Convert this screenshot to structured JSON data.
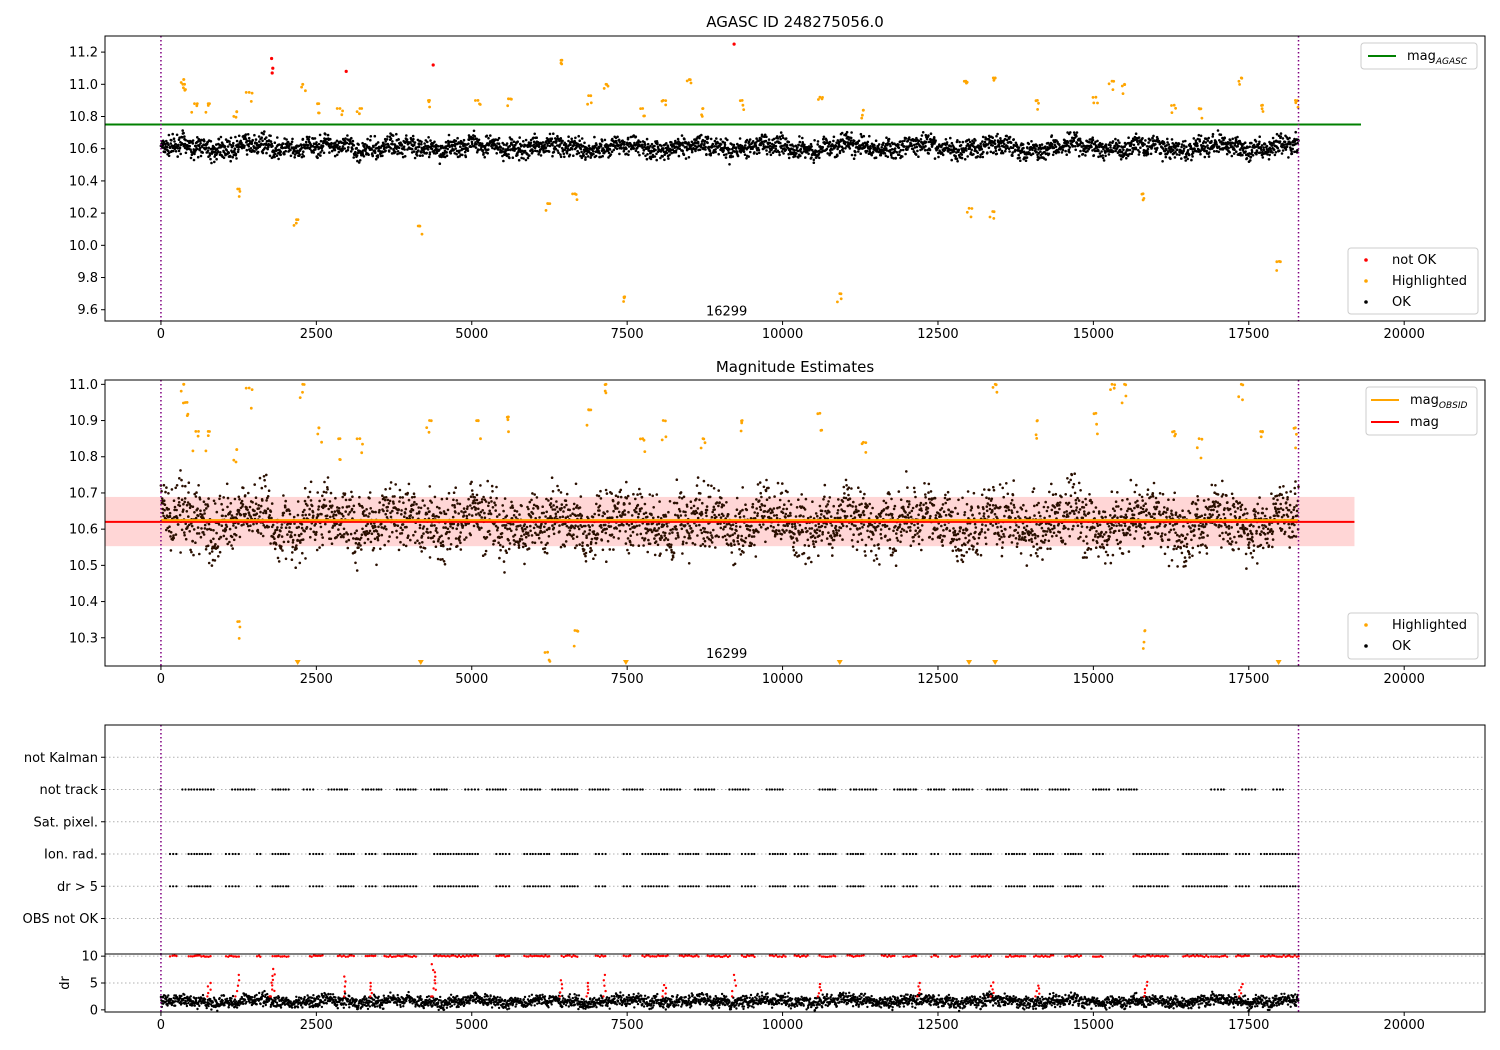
{
  "colors": {
    "ok": "#000000",
    "not_ok": "#ff0000",
    "highlighted": "#ffa500",
    "mag_agasc": "#008000",
    "mag_obsid": "#ffa500",
    "mag": "#ff0000",
    "band": "#ffd6d6",
    "boundary": "#800080",
    "grid": "#b0b0b0"
  },
  "chart_data": [
    {
      "type": "scatter",
      "title": "AGASC ID 248275056.0",
      "xlim": [
        -900,
        21300
      ],
      "ylim": [
        9.53,
        11.3
      ],
      "xticks": [
        0,
        2500,
        5000,
        7500,
        10000,
        12500,
        15000,
        17500,
        20000
      ],
      "yticks": [
        9.6,
        9.8,
        10.0,
        10.2,
        10.4,
        10.6,
        10.8,
        11.0,
        11.2
      ],
      "hline": {
        "name": "mag",
        "subscript": "AGASC",
        "y": 10.75,
        "color": "#008000"
      },
      "vlines": [
        0,
        18300
      ],
      "annotation": {
        "text": "16299",
        "x": 9100,
        "y": 9.59
      },
      "legend_top": [
        {
          "name": "mag",
          "subscript": "AGASC",
          "type": "line",
          "color": "#008000"
        }
      ],
      "legend_bottom": [
        {
          "name": "not OK",
          "color": "#ff0000"
        },
        {
          "name": "Highlighted",
          "color": "#ffa500"
        },
        {
          "name": "OK",
          "color": "#000000"
        }
      ],
      "series": {
        "ok_band": {
          "center": 10.61,
          "spread": 0.05,
          "x_start": 0,
          "x_end": 18300
        },
        "not_ok": [
          [
            1780,
            11.16
          ],
          [
            1800,
            11.1
          ],
          [
            1790,
            11.07
          ],
          [
            2980,
            11.08
          ],
          [
            4380,
            11.12
          ],
          [
            9220,
            11.25
          ]
        ],
        "highlighted": [
          [
            370,
            11.03
          ],
          [
            380,
            11.0
          ],
          [
            540,
            10.88
          ],
          [
            760,
            10.88
          ],
          [
            1220,
            10.83
          ],
          [
            1260,
            10.35
          ],
          [
            1420,
            10.95
          ],
          [
            2180,
            10.16
          ],
          [
            2280,
            11.0
          ],
          [
            2540,
            10.88
          ],
          [
            2880,
            10.85
          ],
          [
            3200,
            10.85
          ],
          [
            4160,
            10.12
          ],
          [
            4320,
            10.9
          ],
          [
            5100,
            10.9
          ],
          [
            5590,
            10.91
          ],
          [
            6220,
            10.26
          ],
          [
            6450,
            11.15
          ],
          [
            6660,
            10.32
          ],
          [
            6880,
            10.93
          ],
          [
            7160,
            11.0
          ],
          [
            7460,
            9.68
          ],
          [
            7750,
            10.85
          ],
          [
            8080,
            10.9
          ],
          [
            8500,
            11.03
          ],
          [
            8720,
            10.85
          ],
          [
            9350,
            10.9
          ],
          [
            10600,
            10.92
          ],
          [
            10920,
            9.7
          ],
          [
            11300,
            10.84
          ],
          [
            12950,
            11.02
          ],
          [
            13000,
            10.23
          ],
          [
            13380,
            10.21
          ],
          [
            13420,
            11.04
          ],
          [
            14100,
            10.9
          ],
          [
            15040,
            10.92
          ],
          [
            15300,
            11.02
          ],
          [
            15500,
            11.0
          ],
          [
            15800,
            10.32
          ],
          [
            16300,
            10.87
          ],
          [
            16700,
            10.85
          ],
          [
            17380,
            11.04
          ],
          [
            17720,
            10.87
          ],
          [
            17990,
            9.9
          ],
          [
            18250,
            10.9
          ]
        ]
      }
    },
    {
      "type": "scatter",
      "title": "Magnitude Estimates",
      "xlim": [
        -900,
        21300
      ],
      "ylim": [
        10.222,
        11.012
      ],
      "xticks": [
        0,
        2500,
        5000,
        7500,
        10000,
        12500,
        15000,
        17500,
        20000
      ],
      "yticks": [
        10.3,
        10.4,
        10.5,
        10.6,
        10.7,
        10.8,
        10.9,
        11.0
      ],
      "hlines": [
        {
          "name": "mag",
          "subscript": "OBSID",
          "y": 10.625,
          "color": "#ffa500",
          "x_start": 0,
          "x_end": 18300
        },
        {
          "name": "mag",
          "subscript": "",
          "y": 10.62,
          "color": "#ff0000",
          "x_start": -900,
          "x_end": 19200
        }
      ],
      "band": {
        "y0": 10.553,
        "y1": 10.689,
        "x_start": -900,
        "x_end": 19200
      },
      "vlines": [
        0,
        18300
      ],
      "annotation": {
        "text": "16299",
        "x": 9100,
        "y": 10.255
      },
      "legend_top": [
        {
          "name": "mag",
          "subscript": "OBSID",
          "type": "line",
          "color": "#ffa500"
        },
        {
          "name": "mag",
          "subscript": "",
          "type": "line",
          "color": "#ff0000"
        }
      ],
      "legend_bottom": [
        {
          "name": "Highlighted",
          "color": "#ffa500"
        },
        {
          "name": "OK",
          "color": "#000000"
        }
      ],
      "series": {
        "ok_band": {
          "center": 10.62,
          "spread": 0.07,
          "x_start": 0,
          "x_end": 18300
        },
        "highlighted": [
          [
            370,
            11.0
          ],
          [
            420,
            10.95
          ],
          [
            560,
            10.87
          ],
          [
            760,
            10.87
          ],
          [
            1220,
            10.82
          ],
          [
            1260,
            10.345
          ],
          [
            1420,
            10.99
          ],
          [
            2280,
            11.0
          ],
          [
            2540,
            10.88
          ],
          [
            2880,
            10.85
          ],
          [
            3200,
            10.85
          ],
          [
            4320,
            10.9
          ],
          [
            5100,
            10.9
          ],
          [
            5590,
            10.91
          ],
          [
            6220,
            10.26
          ],
          [
            6660,
            10.32
          ],
          [
            6880,
            10.93
          ],
          [
            7160,
            11.0
          ],
          [
            7750,
            10.85
          ],
          [
            8080,
            10.9
          ],
          [
            8720,
            10.85
          ],
          [
            9350,
            10.9
          ],
          [
            10600,
            10.92
          ],
          [
            11300,
            10.84
          ],
          [
            13420,
            11.0
          ],
          [
            14100,
            10.9
          ],
          [
            15040,
            10.92
          ],
          [
            15300,
            11.0
          ],
          [
            15500,
            11.0
          ],
          [
            15830,
            10.32
          ],
          [
            16300,
            10.87
          ],
          [
            16700,
            10.85
          ],
          [
            17380,
            11.0
          ],
          [
            17720,
            10.87
          ],
          [
            18250,
            10.88
          ]
        ],
        "below_range_markers": [
          2200,
          4180,
          7480,
          10920,
          13000,
          13420,
          17980
        ]
      }
    },
    {
      "type": "scatter",
      "title": "",
      "xlim": [
        -900,
        21300
      ],
      "categories": [
        "not Kalman",
        "not track",
        "Sat. pixel.",
        "Ion. rad.",
        "dr > 5",
        "OBS not OK"
      ],
      "vlines": [
        0,
        18300
      ],
      "flags": {
        "not track": [
          [
            0,
            0
          ],
          [
            350,
            850
          ],
          [
            1150,
            1500
          ],
          [
            1800,
            2050
          ],
          [
            2300,
            2450
          ],
          [
            2700,
            3000
          ],
          [
            3250,
            3550
          ],
          [
            3800,
            4100
          ],
          [
            4350,
            4600
          ],
          [
            4900,
            5100
          ],
          [
            5250,
            5550
          ],
          [
            5800,
            6100
          ],
          [
            6300,
            6700
          ],
          [
            6900,
            7200
          ],
          [
            7450,
            7750
          ],
          [
            8050,
            8350
          ],
          [
            8600,
            8900
          ],
          [
            9150,
            9450
          ],
          [
            9750,
            10000
          ],
          [
            10600,
            10850
          ],
          [
            11100,
            11500
          ],
          [
            11800,
            12150
          ],
          [
            12350,
            12600
          ],
          [
            12750,
            13050
          ],
          [
            13300,
            13600
          ],
          [
            13850,
            14100
          ],
          [
            14300,
            14600
          ],
          [
            15000,
            15250
          ],
          [
            15400,
            15700
          ],
          [
            16900,
            17100
          ],
          [
            17400,
            17600
          ],
          [
            17900,
            18050
          ]
        ],
        "Ion. rad.": [
          [
            150,
            250
          ],
          [
            450,
            800
          ],
          [
            1050,
            1250
          ],
          [
            1550,
            1600
          ],
          [
            1800,
            2050
          ],
          [
            2400,
            2600
          ],
          [
            2850,
            3100
          ],
          [
            3300,
            3450
          ],
          [
            3600,
            4100
          ],
          [
            4400,
            5100
          ],
          [
            5400,
            5600
          ],
          [
            5850,
            6250
          ],
          [
            6450,
            6700
          ],
          [
            7000,
            7150
          ],
          [
            7450,
            7550
          ],
          [
            7750,
            8150
          ],
          [
            8350,
            8650
          ],
          [
            8800,
            9150
          ],
          [
            9350,
            9550
          ],
          [
            9800,
            10050
          ],
          [
            10200,
            10400
          ],
          [
            10600,
            10850
          ],
          [
            11050,
            11300
          ],
          [
            11600,
            11800
          ],
          [
            11950,
            12150
          ],
          [
            12400,
            12500
          ],
          [
            12700,
            12850
          ],
          [
            13050,
            13350
          ],
          [
            13600,
            13900
          ],
          [
            14050,
            14350
          ],
          [
            14550,
            14800
          ],
          [
            15000,
            15150
          ],
          [
            15650,
            16200
          ],
          [
            16450,
            16850
          ],
          [
            16900,
            17150
          ],
          [
            17300,
            17500
          ],
          [
            17700,
            18300
          ]
        ],
        "dr > 5": [
          [
            150,
            250
          ],
          [
            450,
            800
          ],
          [
            1050,
            1250
          ],
          [
            1550,
            1600
          ],
          [
            1800,
            2050
          ],
          [
            2400,
            2600
          ],
          [
            2850,
            3100
          ],
          [
            3300,
            3450
          ],
          [
            3600,
            4100
          ],
          [
            4400,
            5100
          ],
          [
            5400,
            5600
          ],
          [
            5850,
            6250
          ],
          [
            6450,
            6700
          ],
          [
            7000,
            7150
          ],
          [
            7450,
            7550
          ],
          [
            7750,
            8150
          ],
          [
            8350,
            8650
          ],
          [
            8800,
            9150
          ],
          [
            9350,
            9550
          ],
          [
            9800,
            10050
          ],
          [
            10200,
            10400
          ],
          [
            10600,
            10850
          ],
          [
            11050,
            11300
          ],
          [
            11600,
            11800
          ],
          [
            11950,
            12150
          ],
          [
            12400,
            12500
          ],
          [
            12700,
            12850
          ],
          [
            13050,
            13350
          ],
          [
            13600,
            13900
          ],
          [
            14050,
            14350
          ],
          [
            14550,
            14800
          ],
          [
            15000,
            15150
          ],
          [
            15650,
            16200
          ],
          [
            16450,
            16850
          ],
          [
            16900,
            17150
          ],
          [
            17300,
            17500
          ],
          [
            17700,
            18300
          ]
        ]
      }
    },
    {
      "type": "scatter",
      "ylabel": "dr",
      "xlim": [
        -900,
        21300
      ],
      "ylim": [
        -0.4,
        10.4
      ],
      "xticks": [
        0,
        2500,
        5000,
        7500,
        10000,
        12500,
        15000,
        17500,
        20000
      ],
      "yticks": [
        0,
        5,
        10
      ],
      "vlines": [
        0,
        18300
      ],
      "series": {
        "ok_band": {
          "center": 1.6,
          "spread": 0.9,
          "x_start": 0,
          "x_end": 18300
        },
        "red_spikes": [
          [
            780,
            5
          ],
          [
            1230,
            6.5
          ],
          [
            1780,
            7.6
          ],
          [
            1800,
            6.6
          ],
          [
            2980,
            6.2
          ],
          [
            3400,
            5.0
          ],
          [
            4380,
            8.5
          ],
          [
            4400,
            7.4
          ],
          [
            6450,
            5.5
          ],
          [
            6880,
            5.0
          ],
          [
            7150,
            6.5
          ],
          [
            8100,
            4.6
          ],
          [
            9220,
            6.5
          ],
          [
            10600,
            4.8
          ],
          [
            12200,
            5.0
          ],
          [
            13380,
            5.1
          ],
          [
            14100,
            4.5
          ],
          [
            15850,
            5.2
          ],
          [
            17380,
            4.8
          ]
        ]
      }
    }
  ]
}
